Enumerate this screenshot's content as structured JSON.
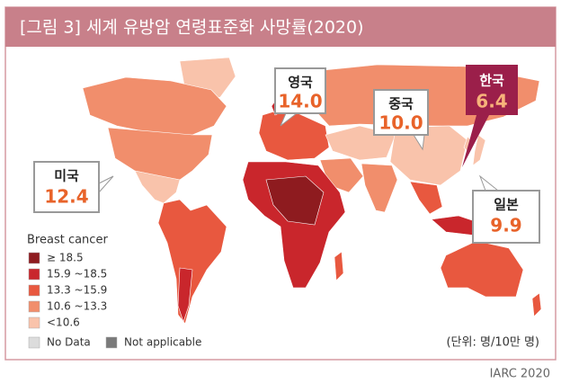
{
  "header": {
    "title": "[그림 3] 세계  유방암 연령표준화 사망률(2020)"
  },
  "callouts": [
    {
      "country": "미국",
      "value": "12.4"
    },
    {
      "country": "영국",
      "value": "14.0"
    },
    {
      "country": "중국",
      "value": "10.0"
    },
    {
      "country": "한국",
      "value": "6.4"
    },
    {
      "country": "일본",
      "value": "9.9"
    }
  ],
  "legend": {
    "title": "Breast cancer",
    "items": [
      {
        "label": "≥ 18.5",
        "color": "#8e1b1f"
      },
      {
        "label": "15.9 ~18.5",
        "color": "#c9262c"
      },
      {
        "label": "13.3 ~15.9",
        "color": "#e8583f"
      },
      {
        "label": "10.6 ~13.3",
        "color": "#f18e6c"
      },
      {
        "label": "<10.6",
        "color": "#f9c3ab"
      },
      {
        "label": "No Data",
        "color": "#dcdcdc"
      },
      {
        "label": "Not applicable",
        "color": "#7a7a7a"
      }
    ]
  },
  "unit": "(단위: 명/10만 명)",
  "source": "IARC 2020"
}
